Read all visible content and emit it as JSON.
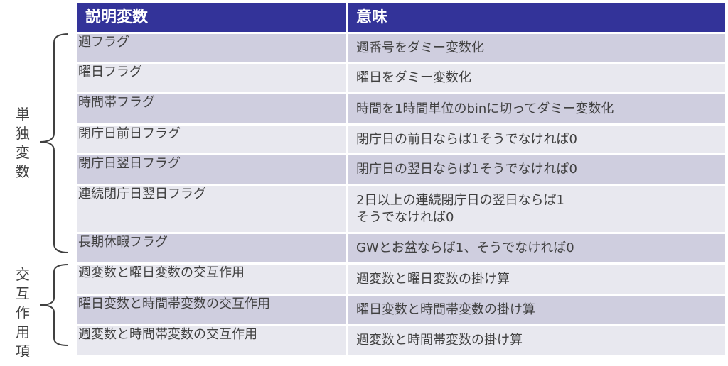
{
  "header": {
    "col1": "説明変数",
    "col2": "意味"
  },
  "rows": [
    {
      "var": "週フラグ",
      "meaning": [
        "週番号をダミー変数化"
      ]
    },
    {
      "var": "曜日フラグ",
      "meaning": [
        "曜日をダミー変数化"
      ]
    },
    {
      "var": "時間帯フラグ",
      "meaning": [
        "時間を1時間単位のbinに切ってダミー変数化"
      ]
    },
    {
      "var": "閉庁日前日フラグ",
      "meaning": [
        "閉庁日の前日ならば1そうでなければ0"
      ]
    },
    {
      "var": "閉庁日翌日フラグ",
      "meaning": [
        "閉庁日の翌日ならば1そうでなければ0"
      ]
    },
    {
      "var": "連続閉庁日翌日フラグ",
      "meaning": [
        "2日以上の連続閉庁日の翌日ならば1",
        "そうでなければ0"
      ]
    },
    {
      "var": "長期休暇フラグ",
      "meaning": [
        "GWとお盆ならば1、そうでなければ0"
      ]
    },
    {
      "var": "週変数と曜日変数の交互作用",
      "meaning": [
        "週変数と曜日変数の掛け算"
      ]
    },
    {
      "var": "曜日変数と時間帯変数の交互作用",
      "meaning": [
        "曜日変数と時間帯変数の掛け算"
      ]
    },
    {
      "var": "週変数と時間帯変数の交互作用",
      "meaning": [
        "週変数と時間帯変数の掛け算"
      ]
    }
  ],
  "groups": {
    "single": [
      "単",
      "独",
      "変",
      "数"
    ],
    "interaction": [
      "交",
      "互",
      "作",
      "用",
      "項"
    ]
  },
  "colors": {
    "header": "#333399",
    "row_odd": "#CFCEDF",
    "row_even": "#E8E8EF"
  }
}
